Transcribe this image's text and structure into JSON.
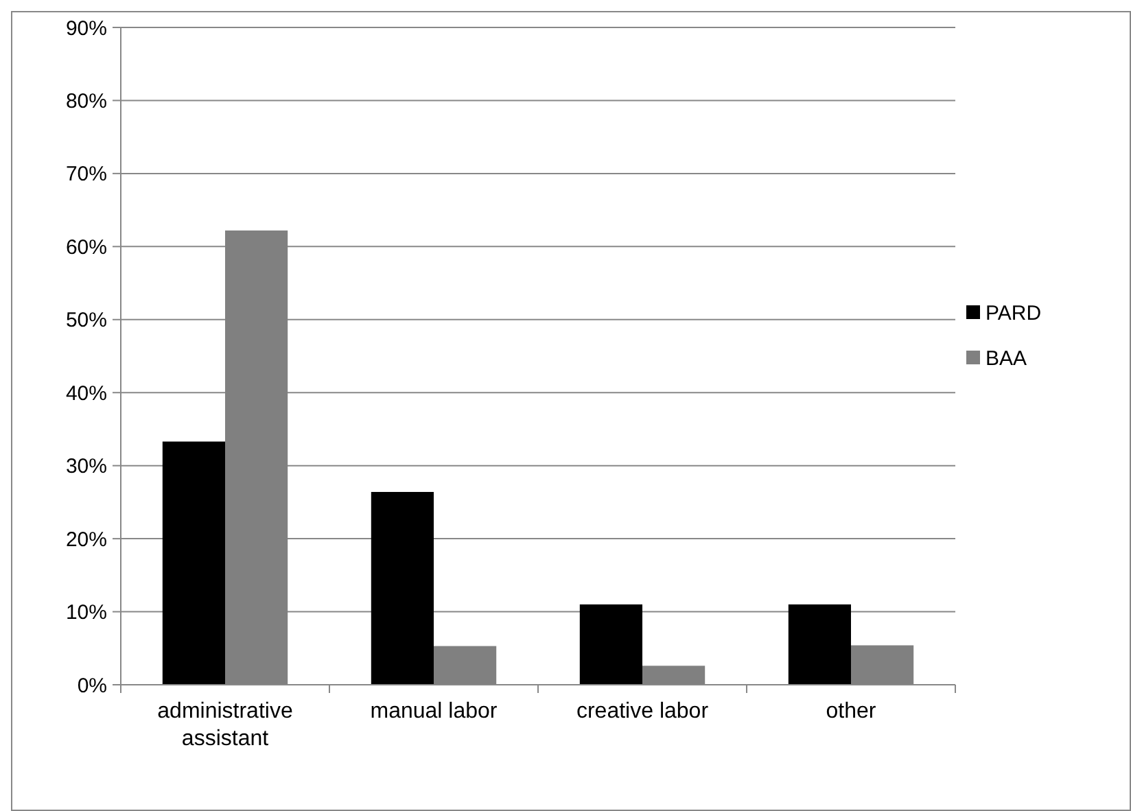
{
  "chart_data": {
    "type": "bar",
    "categories": [
      "administrative assistant",
      "manual labor",
      "creative labor",
      "other"
    ],
    "series": [
      {
        "name": "PARD",
        "color": "#000000",
        "values": [
          33.3,
          26.4,
          11,
          11
        ]
      },
      {
        "name": "BAA",
        "color": "#808080",
        "values": [
          62.2,
          5.3,
          2.6,
          5.4
        ]
      }
    ],
    "ylim": [
      0,
      90
    ],
    "yticks": [
      {
        "value": 0,
        "label": "0%"
      },
      {
        "value": 10,
        "label": "10%"
      },
      {
        "value": 20,
        "label": "20%"
      },
      {
        "value": 30,
        "label": "30%"
      },
      {
        "value": 40,
        "label": "40%"
      },
      {
        "value": 50,
        "label": "50%"
      },
      {
        "value": 60,
        "label": "60%"
      },
      {
        "value": 70,
        "label": "70%"
      },
      {
        "value": 80,
        "label": "80%"
      },
      {
        "value": 90,
        "label": "90%"
      }
    ],
    "grid": "y",
    "legend": "right"
  }
}
